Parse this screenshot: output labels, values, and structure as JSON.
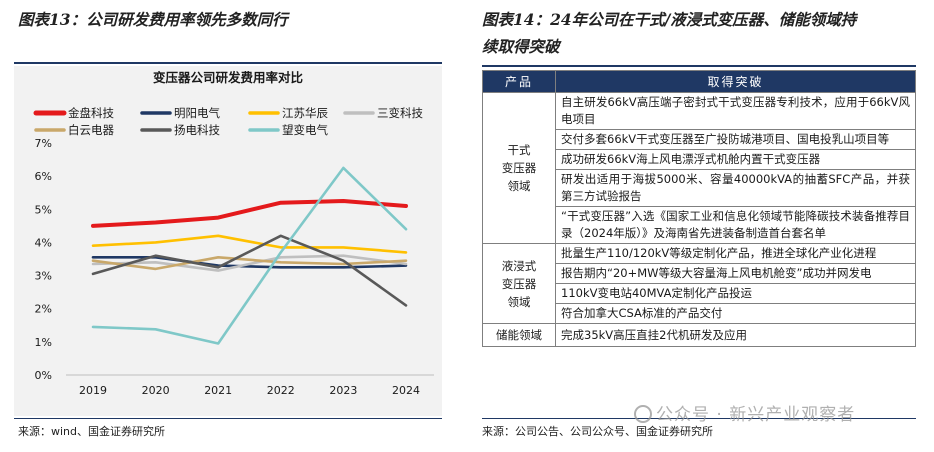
{
  "left_figure": {
    "title": "图表13：公司研发费用率领先多数同行",
    "source": "来源：wind、国金证券研究所"
  },
  "right_figure": {
    "title_line1": "图表14：24年公司在干式/液浸式变压器、储能领域持",
    "title_line2": "续取得突破",
    "source": "来源：公司公告、公司公众号、国金证券研究所",
    "table": {
      "headers": [
        "产品",
        "取得突破"
      ],
      "groups": [
        {
          "category": "干式\n变压器\n领域",
          "items": [
            "自主研发66kV高压端子密封式干式变压器专利技术，应用于66kV风电项目",
            "交付多套66kV干式变压器至广投防城港项目、国电投乳山项目等",
            "成功研发66kV海上风电漂浮式机舱内置干式变压器",
            "研发出适用于海拔5000米、容量40000kVA的抽蓄SFC产品，并获第三方试验报告",
            "“干式变压器”入选《国家工业和信息化领域节能降碳技术装备推荐目录（2024年版）》及海南省先进装备制造首台套名单"
          ]
        },
        {
          "category": "液浸式\n变压器\n领域",
          "items": [
            "批量生产110/120kV等级定制化产品，推进全球化产业化进程",
            "报告期内“20+MW等级大容量海上风电机舱变”成功并网发电",
            "110kV变电站40MVA定制化产品投运",
            "符合加拿大CSA标准的产品交付"
          ]
        },
        {
          "category": "储能领域",
          "items": [
            "完成35kV高压直挂2代机研发及应用"
          ]
        }
      ]
    }
  },
  "watermark": "公众号 · 新兴产业观察者",
  "chart_data": {
    "type": "line",
    "title": "变压器公司研发费用率对比",
    "xlabel": "",
    "ylabel": "",
    "categories": [
      "2019",
      "2020",
      "2021",
      "2022",
      "2023",
      "2024"
    ],
    "ylim": [
      0,
      7
    ],
    "yticks": [
      "0%",
      "1%",
      "2%",
      "3%",
      "4%",
      "5%",
      "6%",
      "7%"
    ],
    "grid": false,
    "legend_position": "top",
    "series": [
      {
        "name": "金盘科技",
        "color": "#e41a1c",
        "width": "thick",
        "values": [
          4.5,
          4.6,
          4.75,
          5.2,
          5.25,
          5.1
        ]
      },
      {
        "name": "明阳电气",
        "color": "#1f3864",
        "width": "normal",
        "values": [
          3.55,
          3.55,
          3.3,
          3.25,
          3.25,
          3.3
        ]
      },
      {
        "name": "江苏华辰",
        "color": "#ffc000",
        "width": "normal",
        "values": [
          3.9,
          4.0,
          4.2,
          3.85,
          3.85,
          3.7
        ]
      },
      {
        "name": "三变科技",
        "color": "#bfbfbf",
        "width": "normal",
        "values": [
          3.35,
          3.4,
          3.15,
          3.55,
          3.6,
          3.35
        ]
      },
      {
        "name": "白云电器",
        "color": "#c9a86a",
        "width": "normal",
        "values": [
          3.45,
          3.2,
          3.55,
          3.4,
          3.35,
          3.45
        ]
      },
      {
        "name": "扬电科技",
        "color": "#595959",
        "width": "normal",
        "values": [
          3.05,
          3.6,
          3.25,
          4.2,
          3.45,
          2.1
        ]
      },
      {
        "name": "望变电气",
        "color": "#7fc8c8",
        "width": "normal",
        "values": [
          1.45,
          1.38,
          0.95,
          3.7,
          6.25,
          4.4
        ]
      }
    ]
  }
}
